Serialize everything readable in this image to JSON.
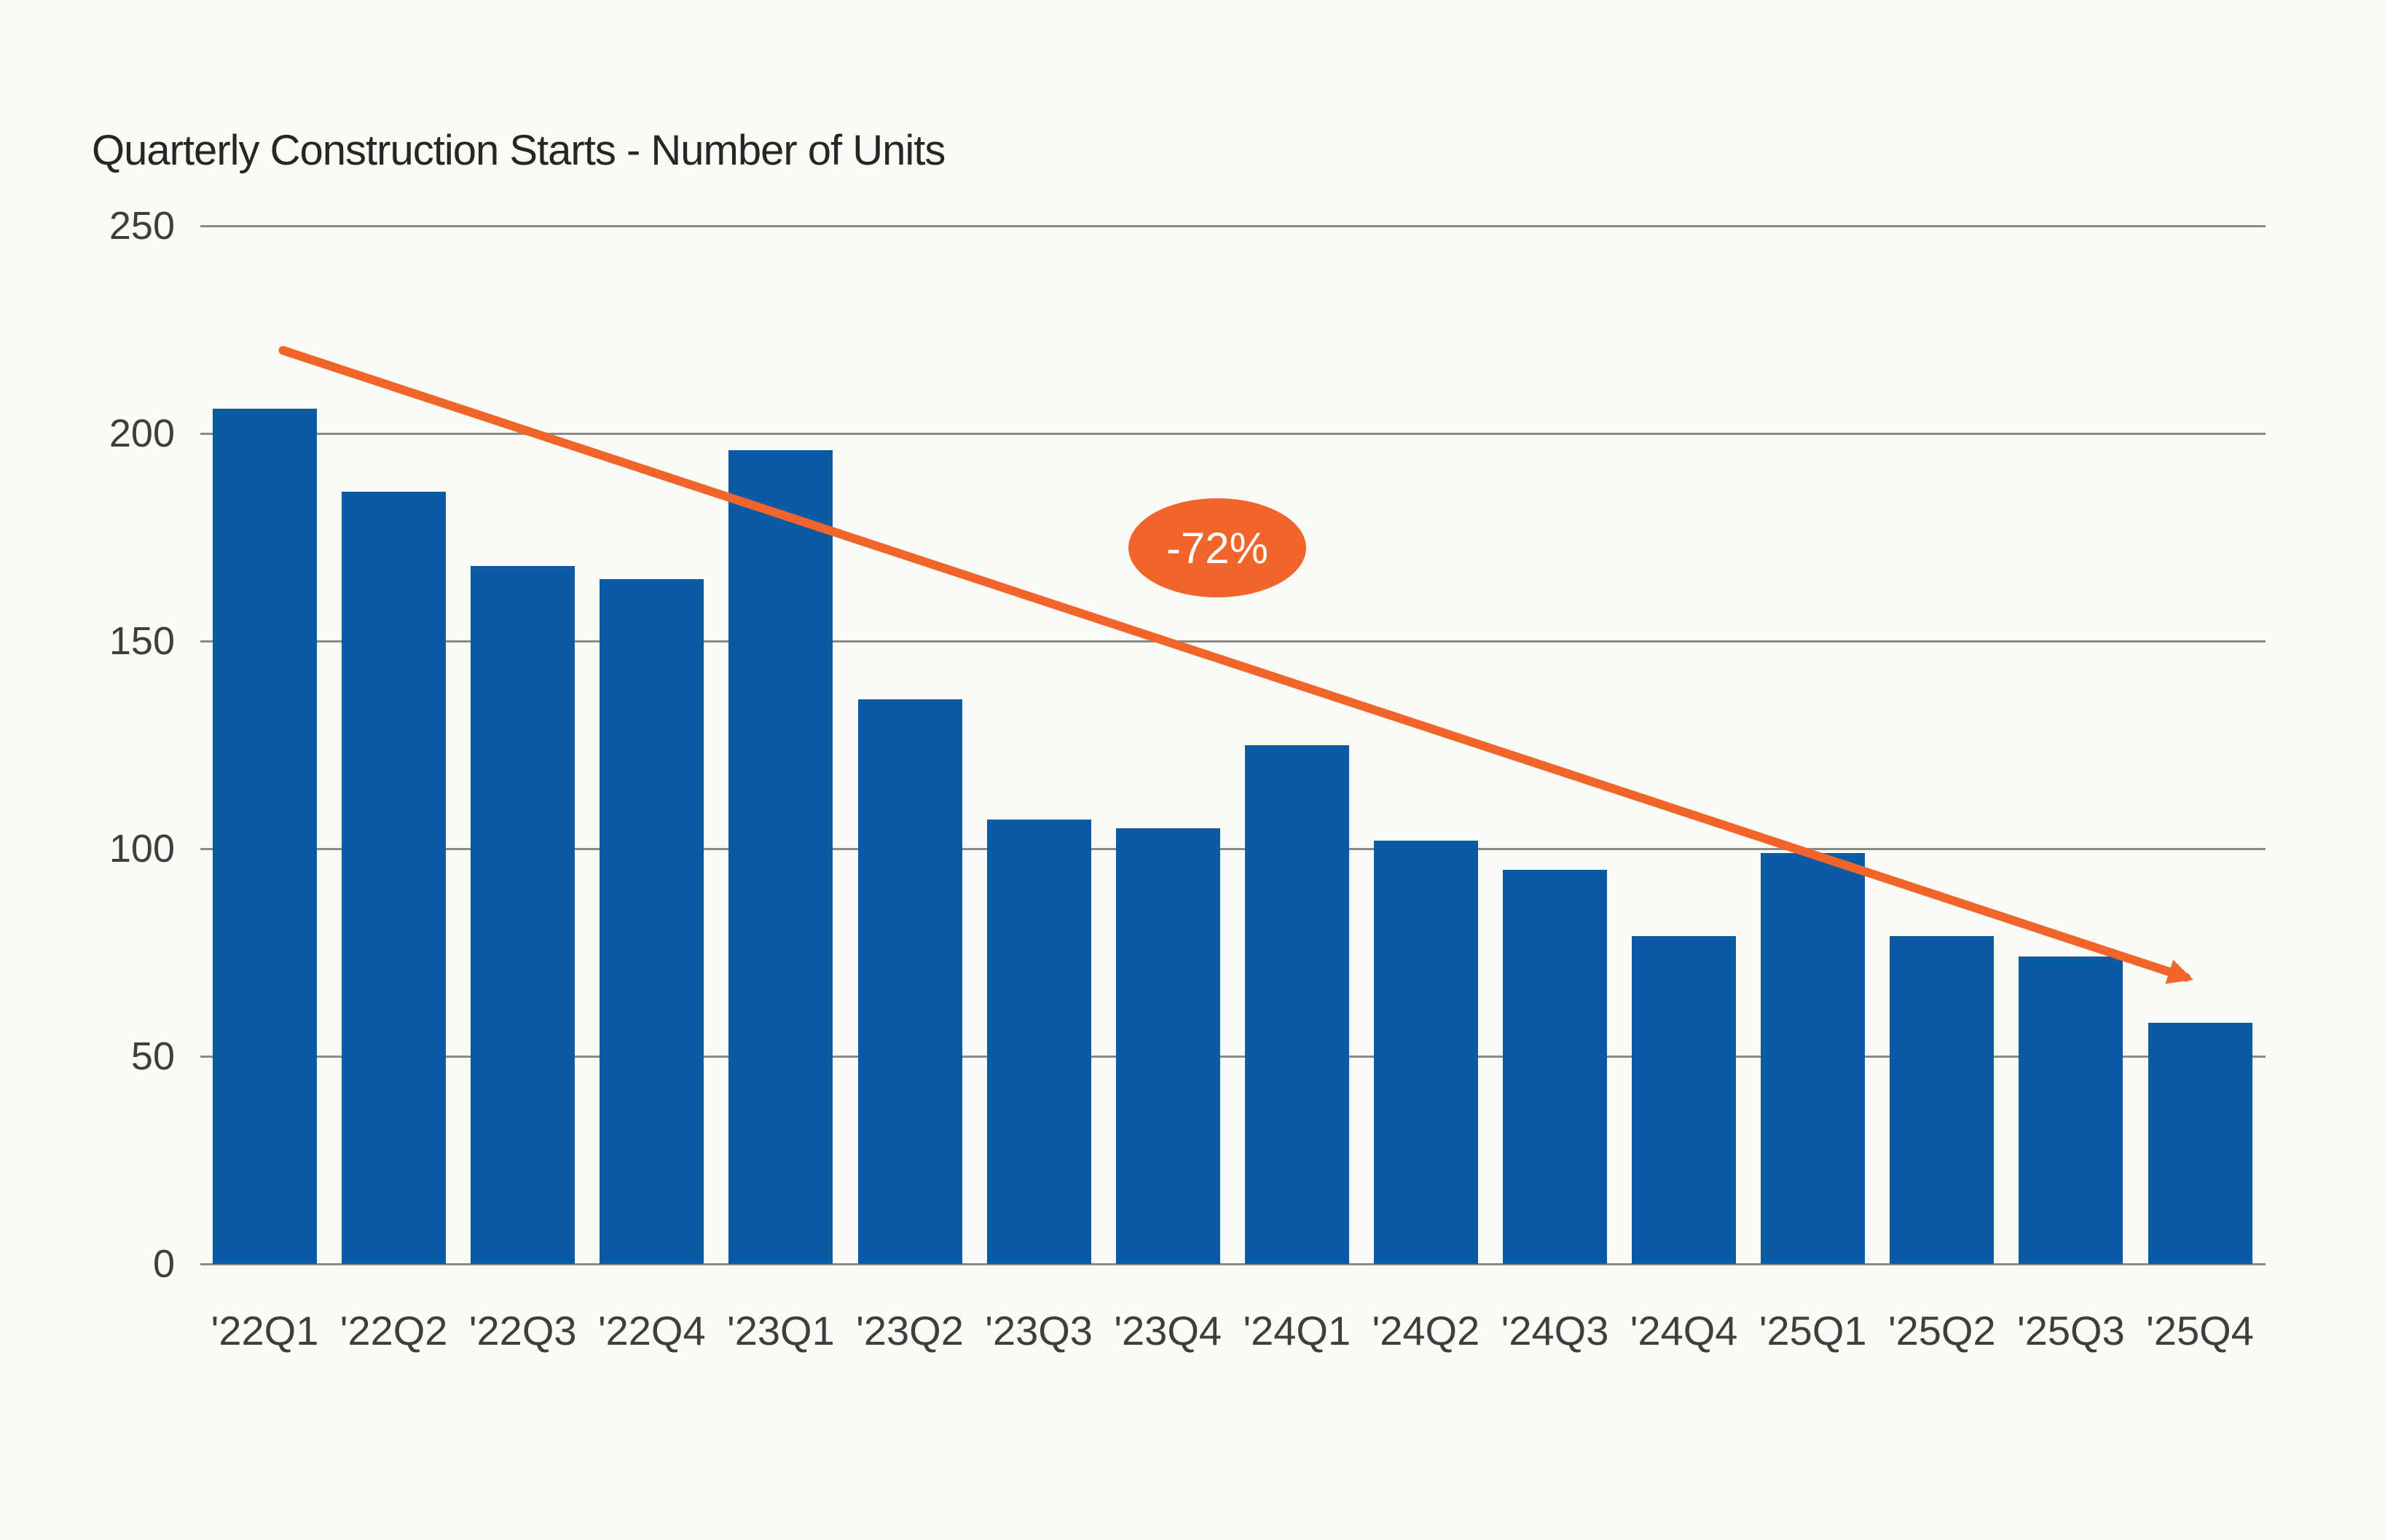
{
  "page": {
    "background": "#FAFAF7"
  },
  "title": "Quarterly Construction Starts - Number of Units",
  "chart_data": {
    "type": "bar",
    "title": "Quarterly Construction Starts - Number of Units",
    "categories": [
      "'22Q1",
      "'22Q2",
      "'22Q3",
      "'22Q4",
      "'23Q1",
      "'23Q2",
      "'23Q3",
      "'23Q4",
      "'24Q1",
      "'24Q2",
      "'24Q3",
      "'24Q4",
      "'25Q1",
      "'25Q2",
      "'25Q3",
      "'25Q4"
    ],
    "values": [
      206,
      186,
      168,
      165,
      196,
      136,
      107,
      105,
      125,
      102,
      95,
      79,
      99,
      79,
      74,
      58
    ],
    "xlabel": "",
    "ylabel": "",
    "ylim": [
      0,
      250
    ],
    "yticks": [
      250,
      200,
      150,
      100,
      50,
      0
    ],
    "grid": true,
    "legend_position": "none",
    "bar_color": "#0A5BA4",
    "grid_color": "#8A8A8A",
    "label_color": "#3E3E3E",
    "title_color": "#262626",
    "annotation": {
      "label": "-72%",
      "color": "#F2652A",
      "text_color": "#FFFFFF",
      "line": {
        "from_category_index": 0,
        "from_value": 220,
        "to_category_index": 15,
        "to_value": 69
      }
    }
  }
}
